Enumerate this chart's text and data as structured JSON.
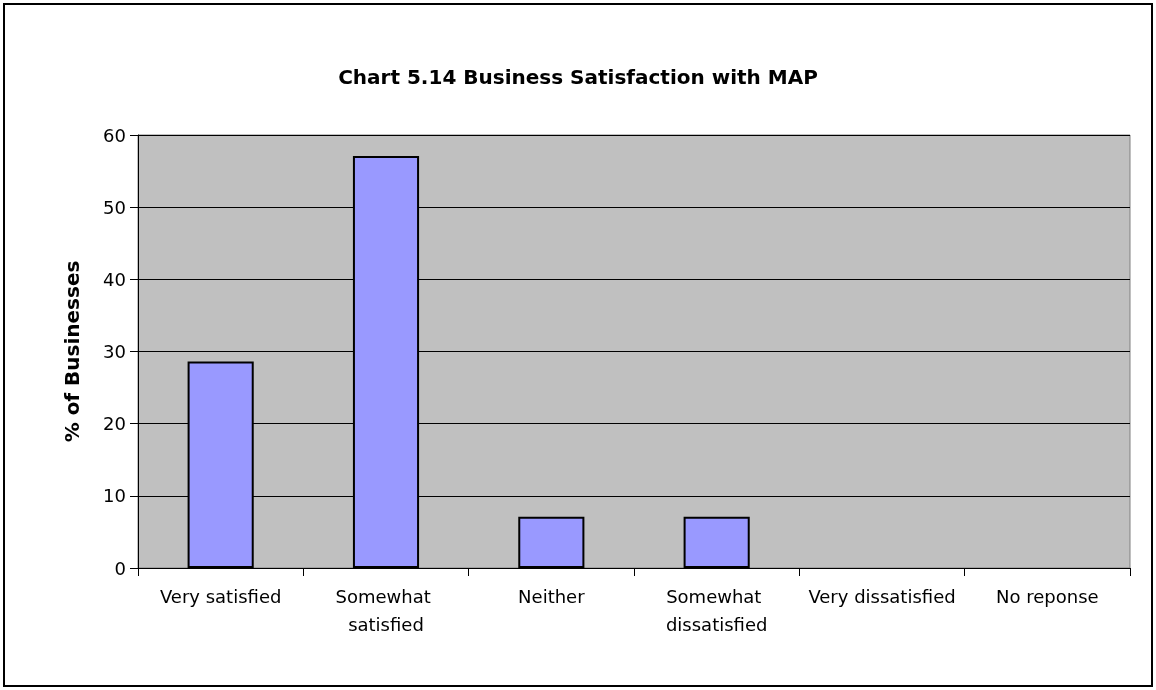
{
  "chart_data": {
    "type": "bar",
    "title": "Chart 5.14 Business Satisfaction with MAP",
    "ylabel": "% of Businesses",
    "categories": [
      "Very satisfied",
      "Somewhat satisfied",
      "Neither",
      "Somewhat dissatisfied",
      "Very dissatisfied",
      "No reponse"
    ],
    "values": [
      28.6,
      57.1,
      7.1,
      7.1,
      0,
      0
    ],
    "color": "#9999ff",
    "ylim": [
      0,
      60
    ],
    "yticks": [
      0,
      10,
      20,
      30,
      40,
      50,
      60
    ],
    "grid": "y"
  }
}
